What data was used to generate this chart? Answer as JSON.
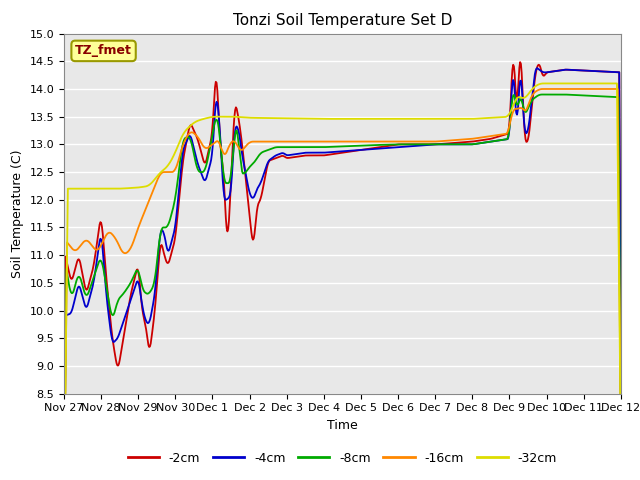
{
  "title": "Tonzi Soil Temperature Set D",
  "xlabel": "Time",
  "ylabel": "Soil Temperature (C)",
  "ylim": [
    8.5,
    15.0
  ],
  "yticks": [
    8.5,
    9.0,
    9.5,
    10.0,
    10.5,
    11.0,
    11.5,
    12.0,
    12.5,
    13.0,
    13.5,
    14.0,
    14.5,
    15.0
  ],
  "legend_label": "TZ_fmet",
  "series_labels": [
    "-2cm",
    "-4cm",
    "-8cm",
    "-16cm",
    "-32cm"
  ],
  "series_colors": [
    "#cc0000",
    "#0000cc",
    "#00aa00",
    "#ff8800",
    "#dddd00"
  ],
  "xtick_labels": [
    "Nov 27",
    "Nov 28",
    "Nov 29",
    "Nov 30",
    "Dec 1",
    "Dec 2",
    "Dec 3",
    "Dec 4",
    "Dec 5",
    "Dec 6",
    "Dec 7",
    "Dec 8",
    "Dec 9",
    "Dec 10",
    "Dec 11",
    "Dec 12"
  ],
  "background_color": "#e8e8e8",
  "grid_color": "#ffffff",
  "annotation_box_facecolor": "#ffff99",
  "annotation_box_edgecolor": "#999900",
  "annotation_text_color": "#880000",
  "title_fontsize": 11,
  "axis_label_fontsize": 9,
  "tick_fontsize": 8
}
